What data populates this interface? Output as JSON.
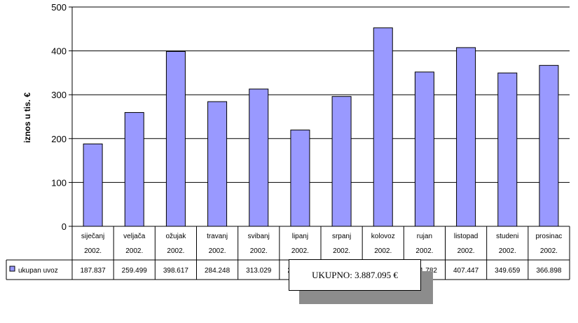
{
  "chart_data": {
    "type": "bar",
    "categories": [
      [
        "siječanj",
        "2002."
      ],
      [
        "veljača",
        "2002."
      ],
      [
        "ožujak",
        "2002."
      ],
      [
        "travanj",
        "2002."
      ],
      [
        "svibanj",
        "2002."
      ],
      [
        "lipanj",
        "2002."
      ],
      [
        "srpanj",
        "2002."
      ],
      [
        "kolovoz",
        "2002."
      ],
      [
        "rujan",
        "2002."
      ],
      [
        "listopad",
        "2002."
      ],
      [
        "studeni",
        "2002."
      ],
      [
        "prosinac",
        "2002."
      ]
    ],
    "series": [
      {
        "name": "ukupan uvoz",
        "values": [
          187.837,
          259.499,
          398.617,
          284.248,
          313.029,
          219.546,
          296.063,
          452.472,
          351.782,
          407.447,
          349.659,
          366.898
        ],
        "labels": [
          "187.837",
          "259.499",
          "398.617",
          "284.248",
          "313.029",
          "219.546",
          "296.063",
          "452.472",
          "351.782",
          "407.447",
          "349.659",
          "366.898"
        ],
        "color": "#9999ff"
      }
    ],
    "ylabel": "iznos u tis. €",
    "ylim": [
      0,
      500
    ],
    "yticks": [
      0,
      100,
      200,
      300,
      400,
      500
    ],
    "grid": true,
    "data_table": true
  },
  "total_label": "UKUPNO: 3.887.095 €"
}
